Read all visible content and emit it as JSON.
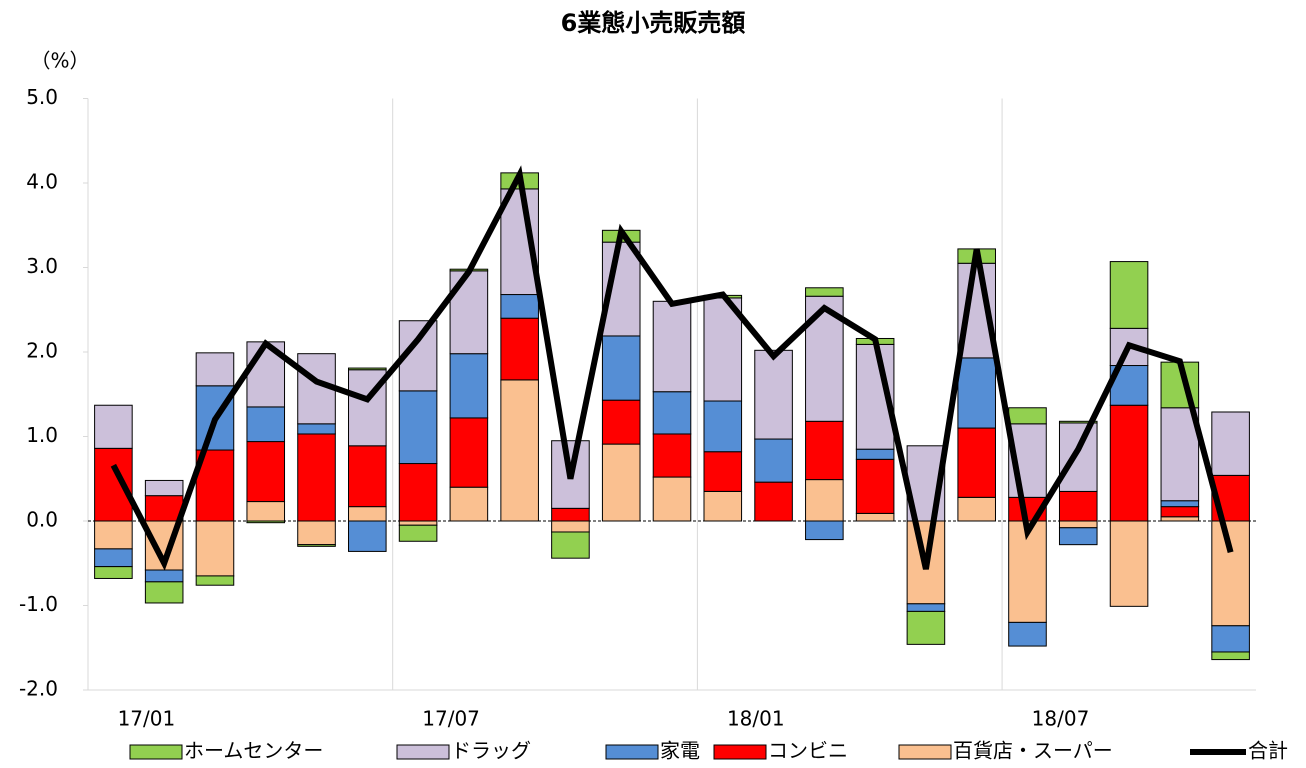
{
  "chart_data": {
    "type": "stacked-bar-line",
    "title": "6業態小売販売額",
    "y_label": "（%）",
    "categories": [
      "17/01",
      null,
      null,
      null,
      null,
      null,
      "17/07",
      null,
      null,
      null,
      null,
      null,
      "18/01",
      null,
      null,
      null,
      null,
      null,
      "18/07",
      null,
      null,
      null,
      null
    ],
    "series": [
      {
        "name": "ホームセンター",
        "color": "#92d050",
        "values": [
          -0.14,
          -0.25,
          -0.11,
          -0.02,
          -0.02,
          0.02,
          -0.19,
          0.02,
          0.19,
          -0.31,
          0.14,
          0,
          0.03,
          0,
          0.1,
          0.07,
          -0.39,
          0.17,
          0.19,
          0.02,
          0.79,
          0.54,
          -0.09
        ]
      },
      {
        "name": "ドラッグ",
        "color": "#ccc0da",
        "values": [
          0.51,
          0.18,
          0.39,
          0.77,
          0.83,
          0.9,
          0.83,
          0.98,
          1.25,
          0.8,
          1.11,
          1.07,
          1.22,
          1.05,
          1.48,
          1.24,
          0.89,
          1.12,
          0.87,
          0.81,
          0.44,
          1.1,
          0.75
        ]
      },
      {
        "name": "家電",
        "color": "#558ed5",
        "values": [
          -0.21,
          -0.14,
          0.76,
          0.41,
          0.12,
          -0.36,
          0.86,
          0.76,
          0.28,
          0,
          0.76,
          0.5,
          0.6,
          0.51,
          -0.22,
          0.12,
          -0.09,
          0.83,
          -0.28,
          -0.2,
          0.47,
          0.07,
          -0.31
        ]
      },
      {
        "name": "コンビニ",
        "color": "#ff0000",
        "values": [
          0.86,
          0.3,
          0.84,
          0.71,
          1.03,
          0.72,
          0.68,
          0.82,
          0.73,
          0.15,
          0.52,
          0.51,
          0.47,
          0.46,
          0.69,
          0.64,
          0,
          0.82,
          0.28,
          0.35,
          1.37,
          0.12,
          0.54
        ]
      },
      {
        "name": "百貨店・スーパー",
        "color": "#fac090",
        "values": [
          -0.33,
          -0.58,
          -0.65,
          0.23,
          -0.28,
          0.17,
          -0.05,
          0.4,
          1.67,
          -0.13,
          0.91,
          0.52,
          0.35,
          0,
          0.49,
          0.09,
          -0.98,
          0.28,
          -1.2,
          -0.08,
          -1.01,
          0.05,
          -1.24
        ]
      },
      {
        "name": "合計",
        "type": "line",
        "color": "#000000",
        "values": [
          0.66,
          -0.5,
          1.2,
          2.1,
          1.65,
          1.44,
          2.15,
          2.95,
          4.1,
          0.5,
          3.43,
          2.57,
          2.68,
          1.95,
          2.52,
          2.15,
          -0.57,
          3.22,
          -0.13,
          0.85,
          2.08,
          1.89,
          -0.37
        ]
      }
    ],
    "ylim": [
      -2,
      5
    ],
    "yticks": [
      {
        "value": -2,
        "label": "-2.0"
      },
      {
        "value": -1,
        "label": "-1.0"
      },
      {
        "value": 0,
        "label": "0.0"
      },
      {
        "value": 1,
        "label": "1.0"
      },
      {
        "value": 2,
        "label": "2.0"
      },
      {
        "value": 3,
        "label": "3.0"
      },
      {
        "value": 4,
        "label": "4.0"
      },
      {
        "value": 5,
        "label": "5.0"
      }
    ],
    "legend": "bottom"
  }
}
